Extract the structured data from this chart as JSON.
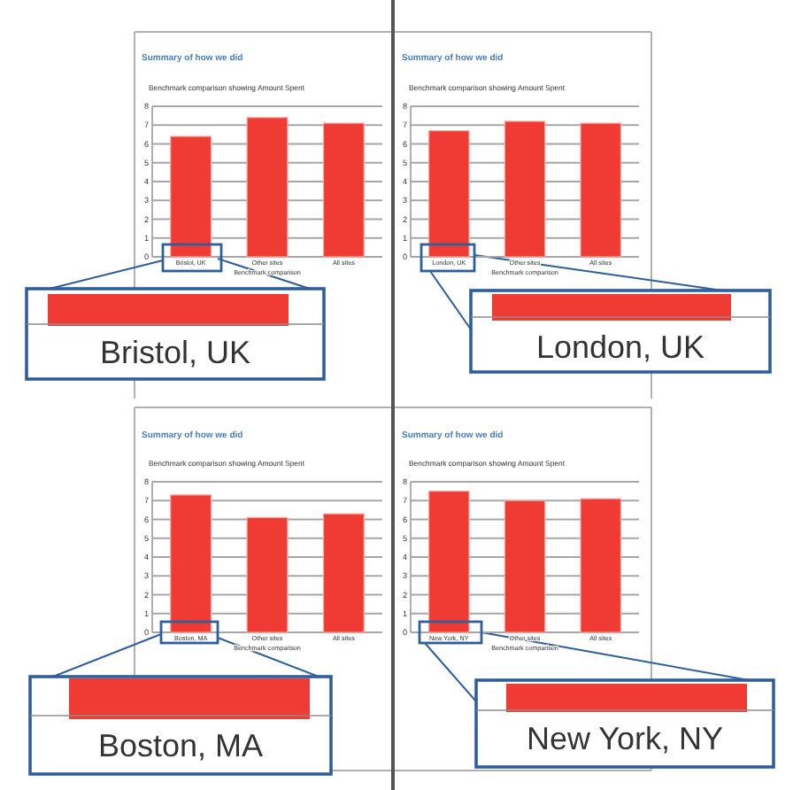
{
  "chart_data": [
    {
      "type": "bar",
      "title": "Summary of how we did",
      "subtitle": "Benchmark comparison showing Amount Spent",
      "xlabel": "Benchmark comparison",
      "categories": [
        "Bristol, UK",
        "Other sites",
        "All sites"
      ],
      "values": [
        6.4,
        7.4,
        7.1
      ],
      "color": "#ef3b33",
      "ylim": [
        0,
        8
      ],
      "yticks": [
        0,
        1,
        2,
        3,
        4,
        5,
        6,
        7,
        8
      ],
      "grid": "y",
      "annotations": [
        "Bristol, UK"
      ]
    },
    {
      "type": "bar",
      "title": "Summary of how we did",
      "subtitle": "Benchmark comparison showing Amount Spent",
      "xlabel": "Benchmark comparison",
      "categories": [
        "London, UK",
        "Other sites",
        "All sites"
      ],
      "values": [
        6.7,
        7.2,
        7.1
      ],
      "color": "#ef3b33",
      "ylim": [
        0,
        8
      ],
      "yticks": [
        0,
        1,
        2,
        3,
        4,
        5,
        6,
        7,
        8
      ],
      "grid": "y",
      "annotations": [
        "London, UK"
      ]
    },
    {
      "type": "bar",
      "title": "Summary of how we did",
      "subtitle": "Benchmark comparison showing Amount Spent",
      "xlabel": "Benchmark comparison",
      "categories": [
        "Boston, MA",
        "Other sites",
        "All sites"
      ],
      "values": [
        7.3,
        6.1,
        6.3
      ],
      "color": "#ef3b33",
      "ylim": [
        0,
        8
      ],
      "yticks": [
        0,
        1,
        2,
        3,
        4,
        5,
        6,
        7,
        8
      ],
      "grid": "y",
      "annotations": [
        "Boston, MA"
      ]
    },
    {
      "type": "bar",
      "title": "Summary of how we did",
      "subtitle": "Benchmark comparison showing Amount Spent",
      "xlabel": "Benchmark comparison",
      "categories": [
        "New York, NY",
        "Other sites",
        "All sites"
      ],
      "values": [
        7.5,
        7.0,
        7.1
      ],
      "color": "#ef3b33",
      "ylim": [
        0,
        8
      ],
      "yticks": [
        0,
        1,
        2,
        3,
        4,
        5,
        6,
        7,
        8
      ],
      "grid": "y",
      "annotations": [
        "New York, NY"
      ]
    }
  ]
}
